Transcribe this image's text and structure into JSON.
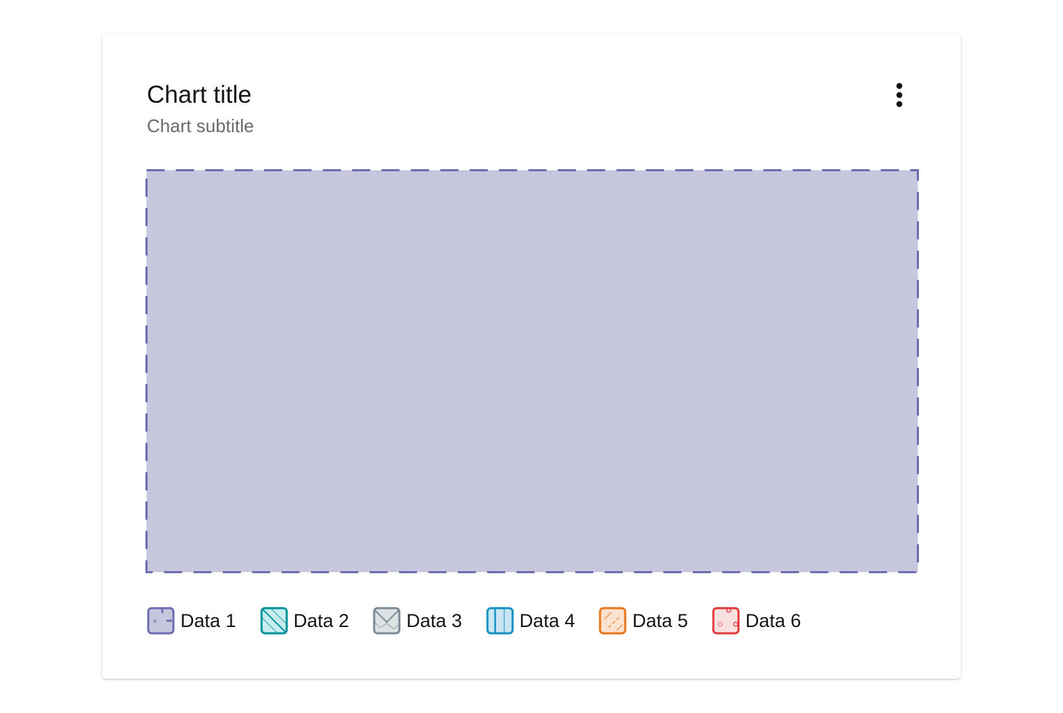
{
  "chart_data": {
    "type": "area",
    "title": "Chart title",
    "subtitle": "Chart subtitle",
    "xlabel": "",
    "ylabel": "",
    "grid": false,
    "legend_position": "bottom-left",
    "series": [
      {
        "name": "Data 1",
        "color": "#6f6bb0",
        "pattern": "dash-square",
        "fill": "#c6c6dc"
      },
      {
        "name": "Data 2",
        "color": "#00939a",
        "pattern": "diagonal-lines",
        "fill": "#c9ecee"
      },
      {
        "name": "Data 3",
        "color": "#7b8a94",
        "pattern": "zigzag",
        "fill": "#dde2e5"
      },
      {
        "name": "Data 4",
        "color": "#1591c4",
        "pattern": "vertical-lines",
        "fill": "#cbe6f3"
      },
      {
        "name": "Data 5",
        "color": "#e8761a",
        "pattern": "diagonal-dashes",
        "fill": "#fbe2cf"
      },
      {
        "name": "Data 6",
        "color": "#e03a3a",
        "pattern": "circles",
        "fill": "#fbe0e0"
      }
    ]
  },
  "menu": {
    "icon": "kebab-menu-icon"
  }
}
